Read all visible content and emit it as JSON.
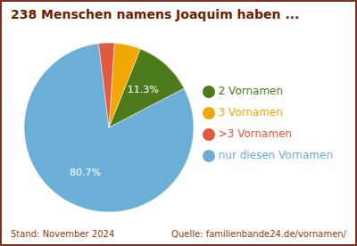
{
  "chart_data": {
    "type": "pie",
    "title": "238 Menschen namens Joaquim haben ...",
    "categories": [
      "nur diesen Vornamen",
      "2 Vornamen",
      "3 Vornamen",
      ">3 Vornamen"
    ],
    "values": [
      80.7,
      11.3,
      5.0,
      3.0
    ],
    "value_labels": [
      "80.7%",
      "11.3%",
      null,
      null
    ],
    "data_labels": true,
    "colors": [
      "#6BAED6",
      "#4D7A1A",
      "#F0A800",
      "#E05A40"
    ],
    "legend": "right",
    "annotations": [
      "Stand: November 2024",
      "Quelle: familienbande24.de/vornamen/"
    ]
  }
}
